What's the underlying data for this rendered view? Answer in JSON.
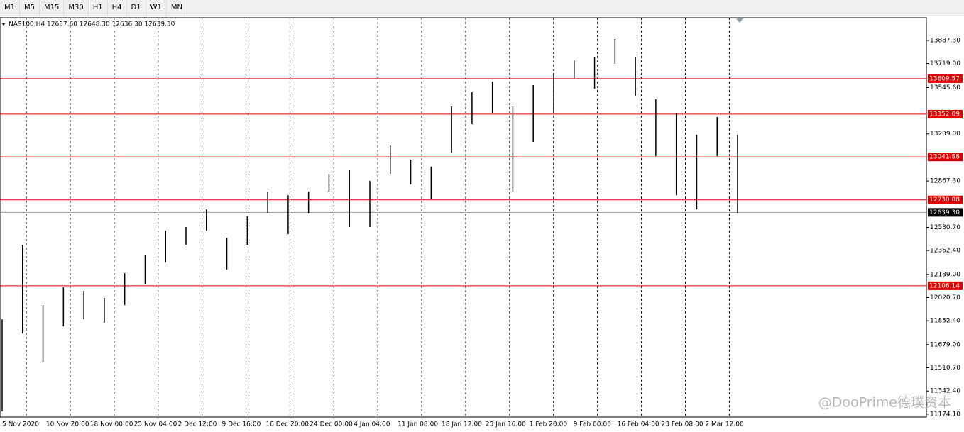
{
  "toolbar": {
    "timeframes": [
      "M1",
      "M5",
      "M15",
      "M30",
      "H1",
      "H4",
      "D1",
      "W1",
      "MN"
    ]
  },
  "watermark": "@DooPrime德璞资本",
  "chart_data": {
    "type": "ohlc",
    "title": "NAS100,H4  12637.60 12648.30 12636.30 12639.30",
    "color": "#000000",
    "x_labels": [
      "5 Nov 2020",
      "10 Nov 20:00",
      "18 Nov 00:00",
      "25 Nov 04:00",
      "2 Dec 12:00",
      "9 Dec 16:00",
      "16 Dec 20:00",
      "24 Dec 00:00",
      "4 Jan 04:00",
      "11 Jan 08:00",
      "18 Jan 12:00",
      "25 Jan 16:00",
      "1 Feb 20:00",
      "9 Feb 00:00",
      "16 Feb 04:00",
      "23 Feb 08:00",
      "2 Mar 12:00"
    ],
    "high": [
      11863,
      12404,
      11966,
      12095,
      12069,
      12018,
      12198,
      12327,
      12507,
      12533,
      12661,
      12455,
      12610,
      12790,
      12764,
      12790,
      12919,
      12945,
      12868,
      13125,
      13022,
      12971,
      13408,
      13511,
      13588,
      13408,
      13563,
      13640,
      13743,
      13769,
      13897,
      13769,
      13460,
      13357,
      13202,
      13331,
      13202
    ],
    "low": [
      11194,
      11760,
      11554,
      11812,
      11863,
      11837,
      11966,
      12121,
      12275,
      12404,
      12507,
      12224,
      12404,
      12636,
      12481,
      12636,
      12790,
      12533,
      12533,
      12919,
      12842,
      12739,
      13073,
      13279,
      13357,
      12790,
      13151,
      13357,
      13614,
      13537,
      13717,
      13485,
      13048,
      12764,
      12661,
      13048,
      12636
    ],
    "ylim": [
      11153,
      14052
    ],
    "yticks": [
      {
        "value": 13887.3,
        "label": "13887.30"
      },
      {
        "value": 13719,
        "label": "13719.00"
      },
      {
        "value": 13545.6,
        "label": "13545.60"
      },
      {
        "value": 13209,
        "label": "13209.00"
      },
      {
        "value": 12867.3,
        "label": "12867.30"
      },
      {
        "value": 12530.7,
        "label": "12530.70"
      },
      {
        "value": 12362.4,
        "label": "12362.40"
      },
      {
        "value": 12189,
        "label": "12189.00"
      },
      {
        "value": 12020.7,
        "label": "12020.70"
      },
      {
        "value": 11852.4,
        "label": "11852.40"
      },
      {
        "value": 11679,
        "label": "11679.00"
      },
      {
        "value": 11510.7,
        "label": "11510.70"
      },
      {
        "value": 11342.4,
        "label": "11342.40"
      },
      {
        "value": 11174.1,
        "label": "11174.10"
      }
    ],
    "levels": [
      13609.57,
      13352.09,
      13041.88,
      12730.08,
      12106.14
    ],
    "level_color": "#e00000",
    "current_price": {
      "value": 12639.3,
      "label": "12639.30"
    }
  }
}
